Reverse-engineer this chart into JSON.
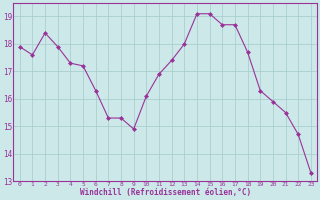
{
  "x": [
    0,
    1,
    2,
    3,
    4,
    5,
    6,
    7,
    8,
    9,
    10,
    11,
    12,
    13,
    14,
    15,
    16,
    17,
    18,
    19,
    20,
    21,
    22,
    23
  ],
  "y": [
    17.9,
    17.6,
    18.4,
    17.9,
    17.3,
    17.2,
    16.3,
    15.3,
    15.3,
    14.9,
    16.1,
    16.9,
    17.4,
    18.0,
    19.1,
    19.1,
    18.7,
    18.7,
    17.7,
    16.3,
    15.9,
    15.5,
    14.7,
    13.3
  ],
  "line_color": "#993399",
  "marker": "D",
  "marker_size": 2.0,
  "bg_color": "#cce8e8",
  "grid_color": "#aacece",
  "xlabel": "Windchill (Refroidissement éolien,°C)",
  "ylim": [
    13,
    19.5
  ],
  "xlim": [
    -0.5,
    23.5
  ],
  "yticks": [
    13,
    14,
    15,
    16,
    17,
    18,
    19
  ],
  "xticks": [
    0,
    1,
    2,
    3,
    4,
    5,
    6,
    7,
    8,
    9,
    10,
    11,
    12,
    13,
    14,
    15,
    16,
    17,
    18,
    19,
    20,
    21,
    22,
    23
  ],
  "tick_color": "#993399",
  "label_color": "#993399",
  "spine_color": "#993399"
}
